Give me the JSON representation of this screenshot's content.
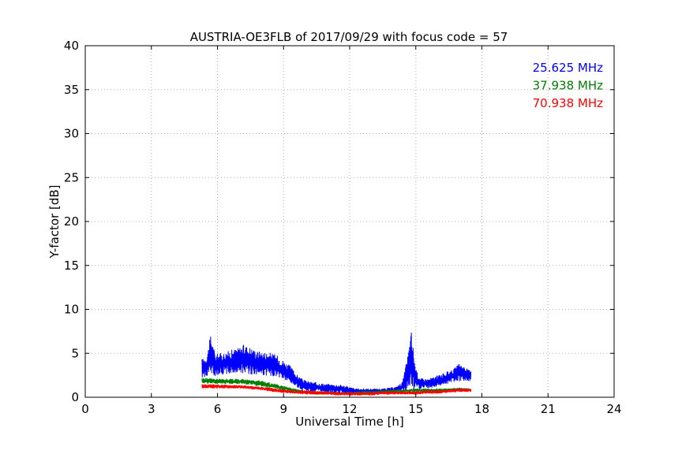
{
  "chart_data": {
    "type": "line",
    "title": "AUSTRIA-OE3FLB of 2017/09/29 with focus code = 57",
    "xlabel": "Universal Time [h]",
    "ylabel": "Y-factor [dB]",
    "xlim": [
      0,
      24
    ],
    "ylim": [
      0,
      40
    ],
    "xticks": [
      0,
      3,
      6,
      9,
      12,
      15,
      18,
      21,
      24
    ],
    "yticks": [
      0,
      5,
      10,
      15,
      20,
      25,
      30,
      35,
      40
    ],
    "grid": true,
    "legend_position": "top-right",
    "series": [
      {
        "name": "25.625 MHz",
        "color": "#0000ff",
        "x": [
          5.3,
          5.5,
          5.7,
          5.9,
          6.0,
          6.3,
          6.6,
          6.9,
          7.2,
          7.5,
          7.8,
          8.1,
          8.4,
          8.7,
          9.0,
          9.3,
          9.6,
          9.9,
          10.2,
          10.5,
          10.8,
          11.1,
          11.4,
          11.7,
          12.0,
          12.3,
          12.6,
          12.9,
          13.2,
          13.5,
          13.8,
          14.1,
          14.4,
          14.6,
          14.8,
          15.0,
          15.2,
          15.5,
          15.8,
          16.1,
          16.4,
          16.7,
          17.0,
          17.3,
          17.5
        ],
        "min": [
          2.2,
          2.3,
          2.4,
          2.4,
          2.5,
          2.6,
          2.6,
          2.8,
          2.7,
          2.6,
          2.5,
          2.4,
          2.4,
          2.3,
          1.9,
          1.5,
          1.1,
          0.8,
          0.6,
          0.6,
          0.5,
          0.5,
          0.4,
          0.4,
          0.3,
          0.3,
          0.3,
          0.4,
          0.4,
          0.4,
          0.5,
          0.5,
          0.6,
          0.7,
          0.8,
          0.8,
          0.9,
          1.0,
          1.1,
          1.3,
          1.5,
          1.7,
          1.8,
          1.9,
          1.8
        ],
        "max": [
          4.4,
          4.6,
          7.2,
          4.9,
          5.0,
          5.1,
          5.4,
          5.6,
          6.0,
          5.7,
          5.3,
          5.2,
          5.1,
          4.8,
          4.2,
          3.6,
          2.6,
          2.0,
          1.8,
          1.7,
          1.6,
          1.5,
          1.5,
          1.4,
          1.2,
          1.0,
          1.0,
          1.0,
          1.0,
          1.0,
          1.1,
          1.2,
          1.8,
          4.3,
          7.7,
          3.2,
          2.2,
          2.1,
          2.3,
          2.6,
          2.9,
          3.2,
          3.9,
          3.3,
          3.0
        ]
      },
      {
        "name": "37.938 MHz",
        "color": "#008000",
        "x": [
          5.3,
          5.6,
          6.0,
          6.5,
          7.0,
          7.5,
          8.0,
          8.5,
          9.0,
          9.5,
          10.0,
          10.5,
          11.0,
          11.5,
          12.0,
          12.5,
          13.0,
          13.5,
          14.0,
          14.5,
          15.0,
          15.5,
          16.0,
          16.5,
          17.0,
          17.5
        ],
        "min": [
          1.5,
          1.5,
          1.5,
          1.5,
          1.5,
          1.4,
          1.2,
          1.0,
          0.8,
          0.6,
          0.4,
          0.3,
          0.3,
          0.3,
          0.3,
          0.3,
          0.4,
          0.4,
          0.5,
          0.6,
          0.6,
          0.6,
          0.6,
          0.6,
          0.7,
          0.7
        ],
        "max": [
          2.2,
          2.2,
          2.1,
          2.1,
          2.1,
          2.0,
          1.9,
          1.6,
          1.3,
          1.0,
          0.8,
          0.7,
          0.7,
          0.6,
          0.6,
          0.7,
          0.7,
          0.8,
          0.9,
          0.9,
          1.0,
          1.0,
          1.0,
          1.0,
          1.1,
          1.0
        ]
      },
      {
        "name": "70.938 MHz",
        "color": "#ff0000",
        "x": [
          5.3,
          5.6,
          6.0,
          6.5,
          7.0,
          7.5,
          8.0,
          8.5,
          9.0,
          9.5,
          10.0,
          10.5,
          11.0,
          11.5,
          12.0,
          12.5,
          13.0,
          13.5,
          14.0,
          14.5,
          15.0,
          15.5,
          16.0,
          16.5,
          17.0,
          17.5
        ],
        "min": [
          1.0,
          1.0,
          1.0,
          1.0,
          1.0,
          0.9,
          0.8,
          0.6,
          0.5,
          0.4,
          0.3,
          0.3,
          0.3,
          0.2,
          0.2,
          0.2,
          0.2,
          0.3,
          0.3,
          0.3,
          0.3,
          0.4,
          0.4,
          0.5,
          0.6,
          0.6
        ],
        "max": [
          1.5,
          1.5,
          1.5,
          1.4,
          1.4,
          1.3,
          1.2,
          1.1,
          0.9,
          0.8,
          0.8,
          0.7,
          0.7,
          0.6,
          0.6,
          0.6,
          0.6,
          0.7,
          0.7,
          0.7,
          0.7,
          0.8,
          0.8,
          0.9,
          1.0,
          1.0
        ]
      }
    ]
  }
}
